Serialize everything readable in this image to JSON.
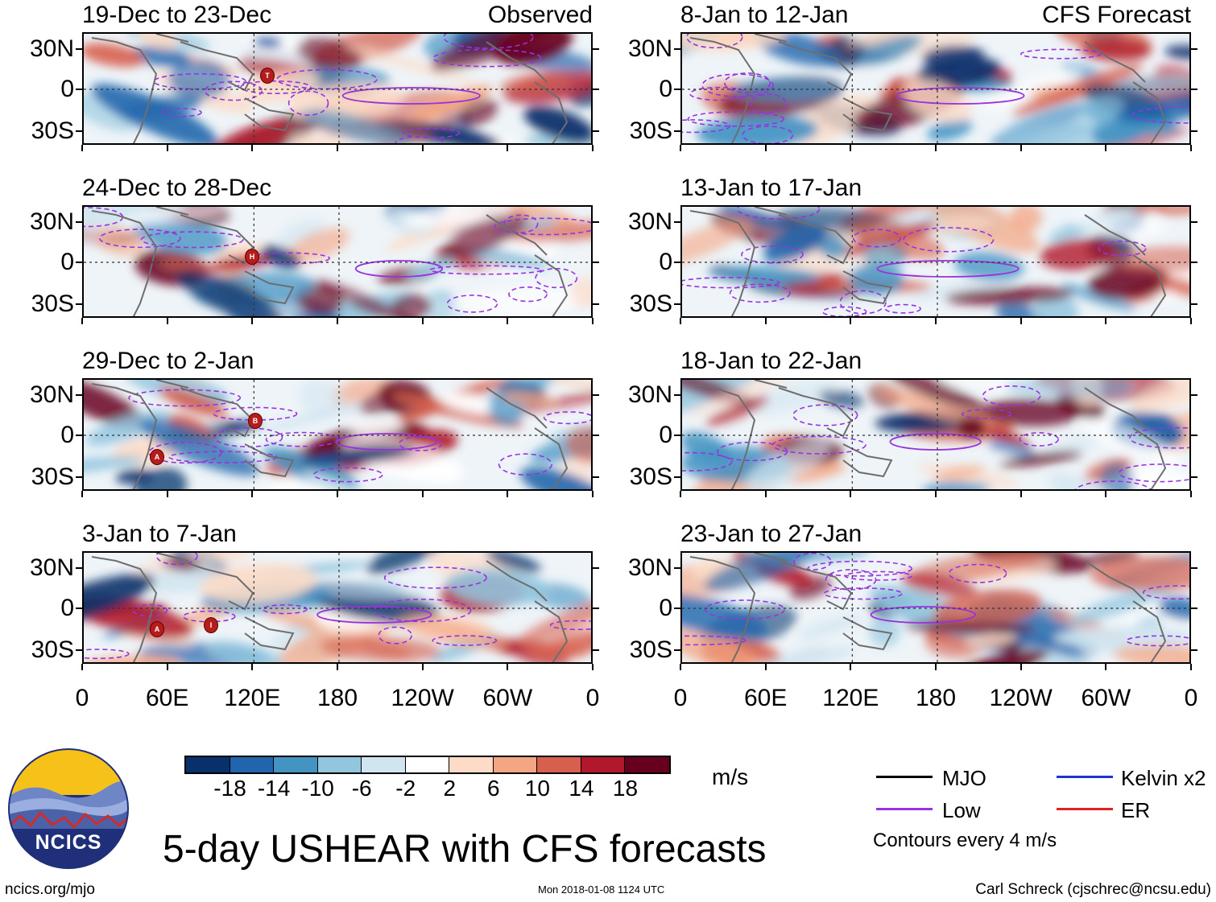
{
  "header": {
    "left_label": "Observed",
    "right_label": "CFS Forecast"
  },
  "panels_left": [
    {
      "title": "19-Dec to 23-Dec"
    },
    {
      "title": "24-Dec to 28-Dec"
    },
    {
      "title": "29-Dec to 2-Jan"
    },
    {
      "title": "3-Jan to 7-Jan"
    }
  ],
  "panels_right": [
    {
      "title": "8-Jan to 12-Jan"
    },
    {
      "title": "13-Jan to 17-Jan"
    },
    {
      "title": "18-Jan to 22-Jan"
    },
    {
      "title": "23-Jan to 27-Jan"
    }
  ],
  "storm_markers": [
    {
      "panel": 0,
      "letter": "T"
    },
    {
      "panel": 1,
      "letter": "H"
    },
    {
      "panel": 2,
      "letter": "B"
    },
    {
      "panel": 2,
      "letter": "A"
    },
    {
      "panel": 3,
      "letter": "A"
    },
    {
      "panel": 3,
      "letter": "I"
    }
  ],
  "lat_labels": [
    "30N",
    "0",
    "30S"
  ],
  "lon_labels": [
    "0",
    "60E",
    "120E",
    "180",
    "120W",
    "60W",
    "0"
  ],
  "colorbar": {
    "colors": [
      "#08306b",
      "#2166ac",
      "#4393c3",
      "#92c5de",
      "#d1e5f0",
      "#ffffff",
      "#fddbc7",
      "#f4a582",
      "#d6604d",
      "#b2182b",
      "#67001f"
    ],
    "labels": [
      "-18",
      "-14",
      "-10",
      "-6",
      "-2",
      "2",
      "6",
      "10",
      "14",
      "18"
    ],
    "unit": "m/s"
  },
  "legend": {
    "mjo": {
      "label": "MJO",
      "color": "#000000"
    },
    "kelvin": {
      "label": "Kelvin x2",
      "color": "#2233cc"
    },
    "low": {
      "label": "Low",
      "color": "#9933dd"
    },
    "er": {
      "label": "ER",
      "color": "#dd2222"
    },
    "note": "Contours every 4 m/s"
  },
  "logo": {
    "text": "NCICS"
  },
  "main_title": "5-day USHEAR with CFS forecasts",
  "footer": {
    "url": "ncics.org/mjo",
    "timestamp": "Mon 2018-01-08 1124 UTC",
    "credit": "Carl Schreck (cjschrec@ncsu.edu)"
  }
}
